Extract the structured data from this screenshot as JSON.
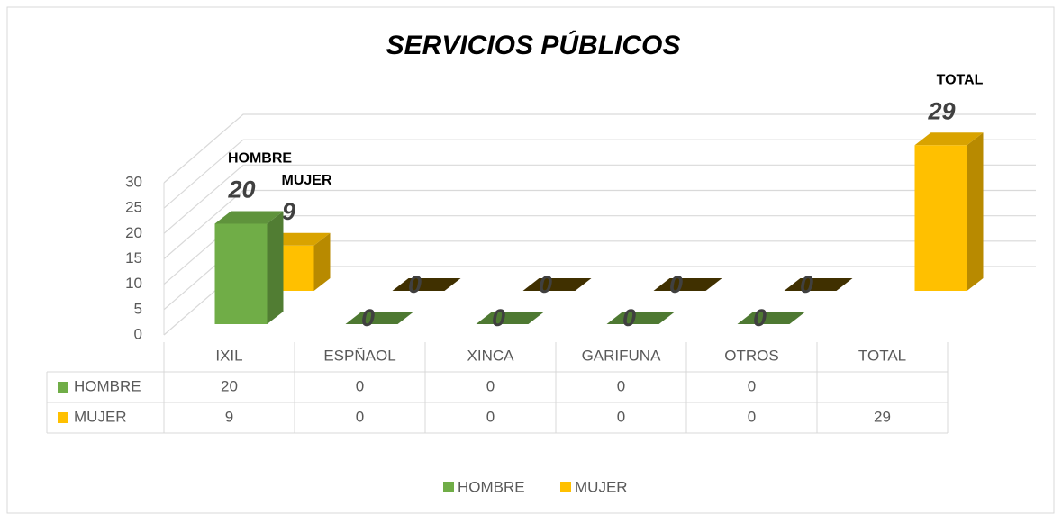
{
  "chart_data": {
    "type": "bar3d",
    "title": "SERVICIOS PÚBLICOS",
    "categories": [
      "IXIL",
      "ESPÑAOL",
      "XINCA",
      "GARIFUNA",
      "OTROS",
      "TOTAL"
    ],
    "series": [
      {
        "name": "HOMBRE",
        "color": "#70ad47",
        "values": [
          20,
          0,
          0,
          0,
          0,
          null
        ]
      },
      {
        "name": "MUJER",
        "color": "#ffc000",
        "values": [
          9,
          0,
          0,
          0,
          0,
          29
        ]
      }
    ],
    "annotations": [
      "HOMBRE",
      "MUJER",
      "TOTAL"
    ],
    "ylim": [
      0,
      30
    ],
    "yticks": [
      0,
      5,
      10,
      15,
      20,
      25,
      30
    ],
    "grid": true,
    "legend": "bottom"
  }
}
